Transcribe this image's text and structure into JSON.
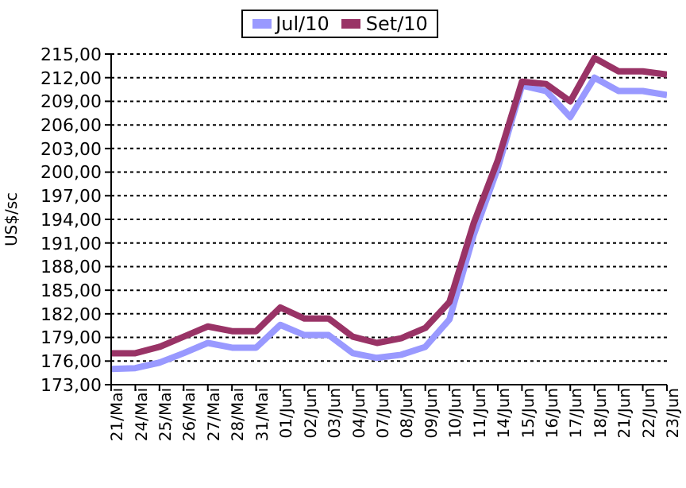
{
  "chart_data": {
    "type": "line",
    "ylabel": "US$/sc",
    "categories": [
      "21/Mai",
      "24/Mai",
      "25/Mai",
      "26/Mai",
      "27/Mai",
      "28/Mai",
      "31/Mai",
      "01/Jun",
      "02/Jun",
      "03/Jun",
      "04/Jun",
      "07/Jun",
      "08/Jun",
      "09/Jun",
      "10/Jun",
      "11/Jun",
      "14/Jun",
      "15/Jun",
      "16/Jun",
      "17/Jun",
      "18/Jun",
      "21/Jun",
      "22/Jun",
      "23/Jun"
    ],
    "series": [
      {
        "name": "Jul/10",
        "color": "#9999ff",
        "values": [
          175.0,
          175.1,
          175.8,
          177.0,
          178.3,
          177.7,
          177.7,
          180.6,
          179.3,
          179.3,
          177.0,
          176.4,
          176.8,
          177.8,
          181.3,
          192.0,
          200.5,
          211.0,
          210.3,
          207.0,
          212.0,
          210.3,
          210.3,
          209.8
        ]
      },
      {
        "name": "Set/10",
        "color": "#993366",
        "values": [
          177.0,
          177.0,
          177.8,
          179.1,
          180.4,
          179.8,
          179.8,
          182.8,
          181.4,
          181.4,
          179.1,
          178.3,
          178.9,
          180.2,
          183.5,
          193.5,
          201.5,
          211.5,
          211.2,
          209.0,
          214.5,
          212.8,
          212.8,
          212.4
        ]
      }
    ],
    "ylim": [
      173,
      215
    ],
    "yticks": [
      {
        "value": 173,
        "label": "173,00"
      },
      {
        "value": 176,
        "label": "176,00"
      },
      {
        "value": 179,
        "label": "179,00"
      },
      {
        "value": 182,
        "label": "182,00"
      },
      {
        "value": 185,
        "label": "185,00"
      },
      {
        "value": 188,
        "label": "188,00"
      },
      {
        "value": 191,
        "label": "191,00"
      },
      {
        "value": 194,
        "label": "194,00"
      },
      {
        "value": 197,
        "label": "197,00"
      },
      {
        "value": 200,
        "label": "200,00"
      },
      {
        "value": 203,
        "label": "203,00"
      },
      {
        "value": 206,
        "label": "206,00"
      },
      {
        "value": 209,
        "label": "209,00"
      },
      {
        "value": 212,
        "label": "212,00"
      },
      {
        "value": 215,
        "label": "215,00"
      }
    ],
    "grid": "y",
    "legend": "top",
    "marker": "none",
    "line_style": "solid"
  }
}
